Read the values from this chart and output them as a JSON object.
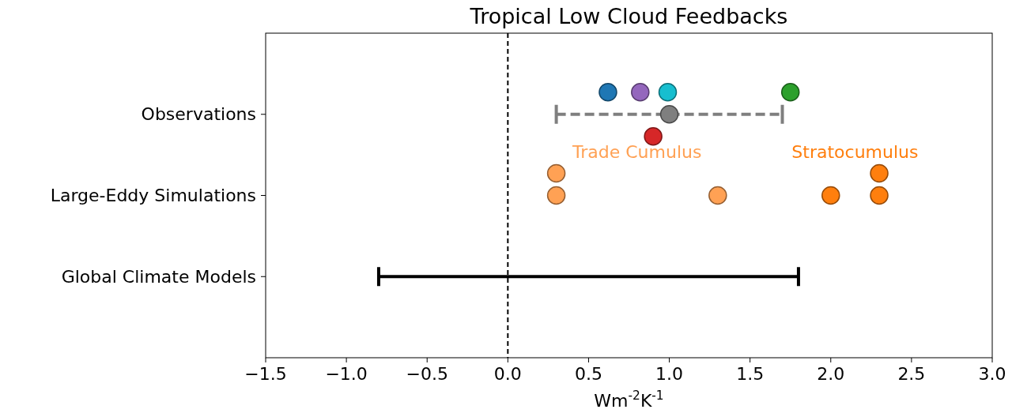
{
  "chart_data": {
    "type": "scatter",
    "orientation": "horizontal",
    "title": "Tropical Low Cloud Feedbacks",
    "xlabel": "Wm$^{-2}$K$^{-1}$",
    "categories": [
      "Observations",
      "Large-Eddy Simulations",
      "Global Climate Models"
    ],
    "xlim": [
      -1.5,
      3.0
    ],
    "xticks": [
      {
        "value": -1.5,
        "label": "−1.5"
      },
      {
        "value": -1.0,
        "label": "−1.0"
      },
      {
        "value": -0.5,
        "label": "−0.5"
      },
      {
        "value": 0,
        "label": "0.0"
      },
      {
        "value": 0.5,
        "label": "0.5"
      },
      {
        "value": 1.0,
        "label": "1.0"
      },
      {
        "value": 1.5,
        "label": "1.5"
      },
      {
        "value": 2.0,
        "label": "2.0"
      },
      {
        "value": 2.5,
        "label": "2.5"
      },
      {
        "value": 3.0,
        "label": "3.0"
      }
    ],
    "marker": "circle",
    "grid": false,
    "legend": false,
    "ref_lines": [
      {
        "axis": "x",
        "value": 0,
        "color": "#000000",
        "line_style": "dashed"
      }
    ],
    "series": [
      {
        "type": "bar",
        "x": [
          "Observations"
        ],
        "base": [
          0.3
        ],
        "values": [
          1.4
        ],
        "color": "#7f7f7f",
        "line_style": "dashed"
      },
      {
        "x": [
          "Observations"
        ],
        "values": [
          1.0
        ],
        "color": "#7f7f7f"
      },
      {
        "x": [
          "Observations",
          "Observations",
          "Observations",
          "Observations",
          "Observations"
        ],
        "values": [
          0.62,
          0.82,
          0.9,
          0.99,
          1.75
        ],
        "colors": [
          "#1f77b4",
          "#9467bd",
          "#d62728",
          "#17becf",
          "#2ca02c"
        ]
      },
      {
        "name": "Trade Cumulus",
        "x": [
          "Large-Eddy Simulations",
          "Large-Eddy Simulations",
          "Large-Eddy Simulations"
        ],
        "values": [
          0.3,
          0.3,
          1.3
        ],
        "color": "#ffa154"
      },
      {
        "name": "Stratocumulus",
        "x": [
          "Large-Eddy Simulations",
          "Large-Eddy Simulations",
          "Large-Eddy Simulations"
        ],
        "values": [
          2.0,
          2.3,
          2.3
        ],
        "color": "#ff7f0e"
      },
      {
        "type": "bar",
        "x": [
          "Global Climate Models"
        ],
        "base": [
          -0.8
        ],
        "values": [
          2.6
        ],
        "color": "#000000"
      }
    ]
  }
}
